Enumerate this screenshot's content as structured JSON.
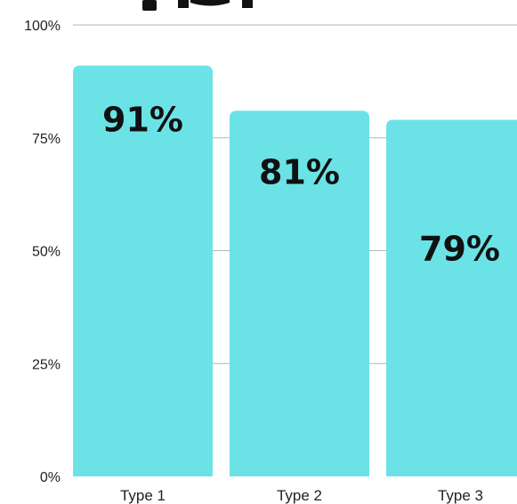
{
  "chart_data": {
    "type": "bar",
    "categories": [
      "Type 1",
      "Type 2",
      "Type 3"
    ],
    "values": [
      91,
      81,
      79
    ],
    "data_labels": [
      "91%",
      "81%",
      "79%"
    ],
    "y_ticks": [
      "0%",
      "25%",
      "50%",
      "75%",
      "100%"
    ],
    "ylim": [
      0,
      100
    ],
    "grid": true,
    "legend": "none",
    "title": "",
    "xlabel": "",
    "ylabel": ""
  },
  "colors": {
    "bar": "#6be3e6",
    "grid": "#b5b5b5",
    "text": "#222222"
  }
}
